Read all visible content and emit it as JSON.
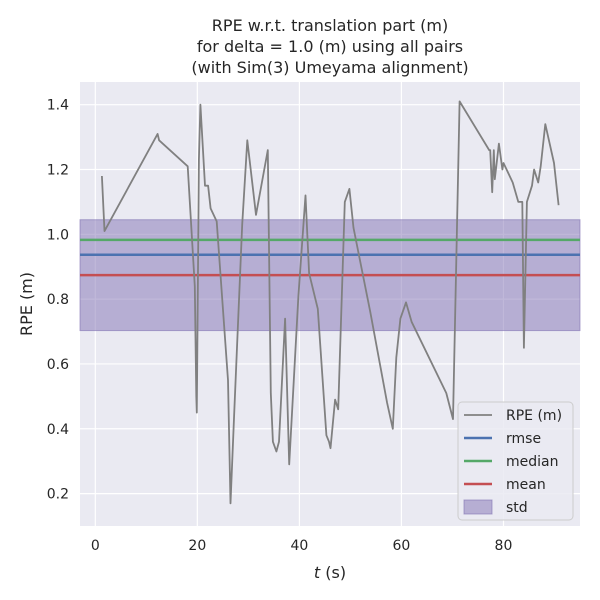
{
  "chart_data": {
    "type": "line",
    "title": [
      "RPE w.r.t. translation part (m)",
      "for delta = 1.0 (m) using all pairs",
      "(with Sim(3) Umeyama alignment)"
    ],
    "xlabel_italic": "t",
    "xlabel_rest": " (s)",
    "ylabel": "RPE (m)",
    "xlim": [
      -3,
      95
    ],
    "ylim": [
      0.1,
      1.47
    ],
    "xticks": [
      0,
      20,
      40,
      60,
      80
    ],
    "yticks": [
      0.2,
      0.4,
      0.6,
      0.8,
      1.0,
      1.2,
      1.4
    ],
    "xtick_labels": [
      "0",
      "20",
      "40",
      "60",
      "80"
    ],
    "ytick_labels": [
      "0.2",
      "0.4",
      "0.6",
      "0.8",
      "1.0",
      "1.2",
      "1.4"
    ],
    "grid": true,
    "legend_position": "lower right",
    "series": [
      {
        "name": "RPE (m)",
        "color": "#808080",
        "x": [
          1.3,
          1.8,
          12.2,
          12.5,
          18.1,
          19.5,
          19.8,
          19.9,
          20.3,
          20.6,
          21.5,
          22.1,
          22.6,
          23.8,
          26.0,
          26.5,
          27.2,
          28.8,
          29.8,
          31.5,
          33.8,
          34.4,
          34.8,
          35.5,
          36.0,
          37.2,
          38.0,
          39.8,
          41.2,
          41.9,
          43.6,
          45.3,
          45.8,
          46.1,
          47.0,
          47.6,
          48.9,
          49.8,
          50.6,
          53.9,
          57.2,
          58.3,
          59.0,
          59.8,
          60.9,
          62.0,
          68.8,
          70.1,
          71.4,
          77.2,
          77.4,
          77.8,
          78.1,
          78.3,
          79.1,
          79.8,
          80.0,
          81.8,
          82.9,
          83.7,
          84.0,
          84.6,
          85.6,
          86.0,
          86.8,
          87.3,
          88.2,
          89.9,
          90.8
        ],
        "y": [
          1.18,
          1.01,
          1.31,
          1.29,
          1.21,
          0.84,
          0.5,
          0.45,
          1.23,
          1.4,
          1.15,
          1.15,
          1.08,
          1.04,
          0.55,
          0.17,
          0.44,
          1.03,
          1.29,
          1.06,
          1.26,
          0.51,
          0.36,
          0.33,
          0.36,
          0.74,
          0.29,
          0.81,
          1.12,
          0.88,
          0.77,
          0.38,
          0.36,
          0.34,
          0.49,
          0.46,
          1.1,
          1.14,
          1.02,
          0.76,
          0.48,
          0.4,
          0.62,
          0.74,
          0.79,
          0.73,
          0.51,
          0.43,
          1.41,
          1.26,
          1.26,
          1.13,
          1.26,
          1.17,
          1.28,
          1.2,
          1.22,
          1.16,
          1.1,
          1.1,
          0.65,
          1.1,
          1.15,
          1.2,
          1.16,
          1.21,
          1.34,
          1.22,
          1.09
        ]
      },
      {
        "name": "rmse",
        "color": "#4c72b0",
        "value": 0.937
      },
      {
        "name": "median",
        "color": "#55a868",
        "value": 0.983
      },
      {
        "name": "mean",
        "color": "#c44e52",
        "value": 0.874
      },
      {
        "name": "std",
        "color": "#8172b3",
        "range": [
          0.703,
          1.045
        ]
      }
    ]
  }
}
